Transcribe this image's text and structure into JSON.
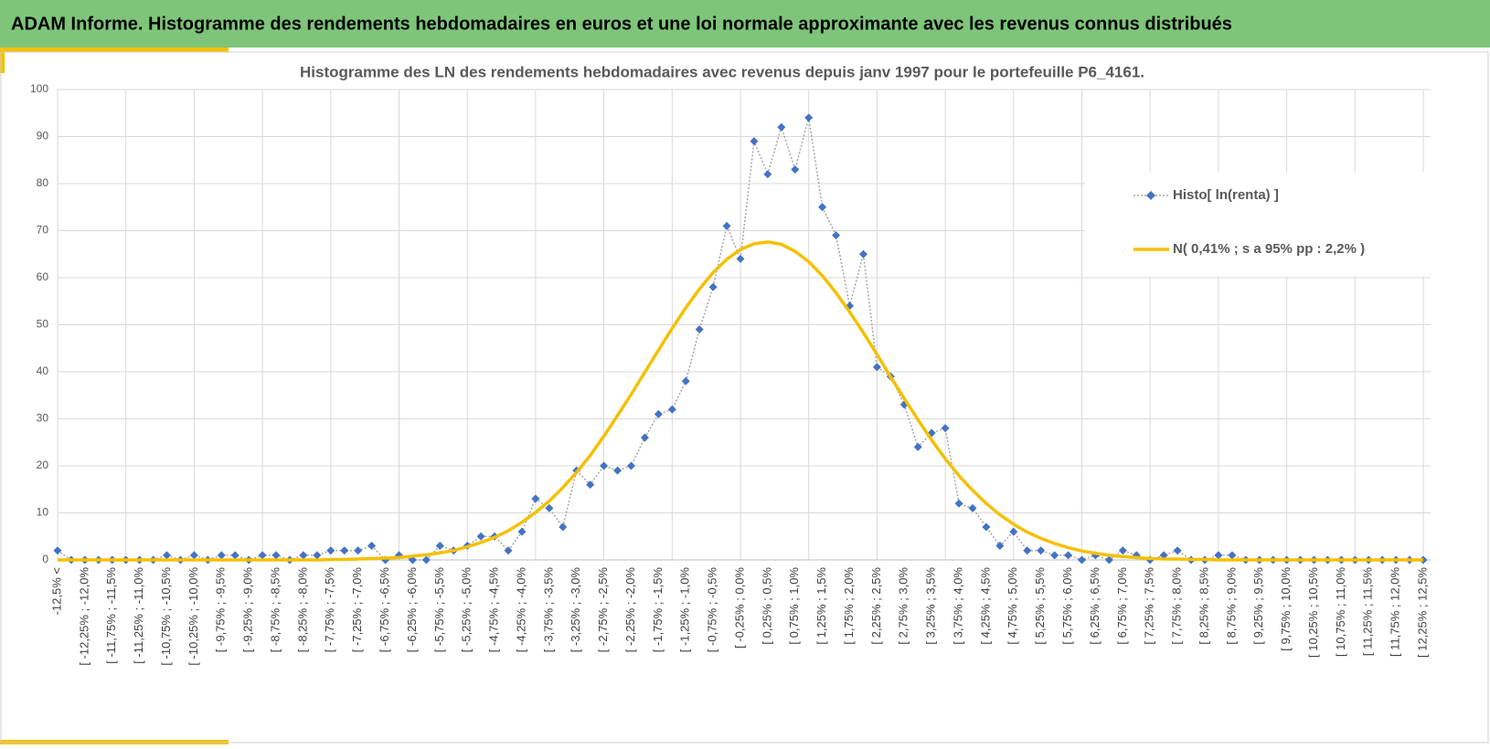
{
  "header": {
    "title": "ADAM Informe. Histogramme des rendements hebdomadaires en euros et une loi normale approximante avec les revenus connus distribués"
  },
  "chart_data": {
    "type": "line",
    "title": "Histogramme des LN des rendements hebdomadaires avec revenus depuis janv 1997 pour le portefeuille P6_4161.",
    "categories": [
      "-12,5% <",
      null,
      "[ -12,25% ; -12,0%",
      null,
      "[ -11,75% ; -11,5%",
      null,
      "[ -11,25% ; -11,0%",
      null,
      "[ -10,75% ; -10,5%",
      null,
      "[ -10,25% ; -10,0%",
      null,
      "[ -9,75% ; -9,5%",
      null,
      "[ -9,25% ; -9,0%",
      null,
      "[ -8,75% ; -8,5%",
      null,
      "[ -8,25% ; -8,0%",
      null,
      "[ -7,75% ; -7,5%",
      null,
      "[ -7,25% ; -7,0%",
      null,
      "[ -6,75% ; -6,5%",
      null,
      "[ -6,25% ; -6,0%",
      null,
      "[ -5,75% ; -5,5%",
      null,
      "[ -5,25% ; -5,0%",
      null,
      "[ -4,75% ; -4,5%",
      null,
      "[ -4,25% ; -4,0%",
      null,
      "[ -3,75% ; -3,5%",
      null,
      "[ -3,25% ; -3,0%",
      null,
      "[ -2,75% ; -2,5%",
      null,
      "[ -2,25% ; -2,0%",
      null,
      "[ -1,75% ; -1,5%",
      null,
      "[ -1,25% ; -1,0%",
      null,
      "[ -0,75% ; -0,5%",
      null,
      "[ -0,25% ; 0,0%",
      null,
      "[ 0,25% ; 0,5%",
      null,
      "[ 0,75% ; 1,0%",
      null,
      "[ 1,25% ; 1,5%",
      null,
      "[ 1,75% ; 2,0%",
      null,
      "[ 2,25% ; 2,5%",
      null,
      "[ 2,75% ; 3,0%",
      null,
      "[ 3,25% ; 3,5%",
      null,
      "[ 3,75% ; 4,0%",
      null,
      "[ 4,25% ; 4,5%",
      null,
      "[ 4,75% ; 5,0%",
      null,
      "[ 5,25% ; 5,5%",
      null,
      "[ 5,75% ; 6,0%",
      null,
      "[ 6,25% ; 6,5%",
      null,
      "[ 6,75% ; 7,0%",
      null,
      "[ 7,25% ; 7,5%",
      null,
      "[ 7,75% ; 8,0%",
      null,
      "[ 8,25% ; 8,5%",
      null,
      "[ 8,75% ; 9,0%",
      null,
      "[ 9,25% ; 9,5%",
      null,
      "[ 9,75% ; 10,0%",
      null,
      "[ 10,25% ; 10,5%",
      null,
      "[ 10,75% ; 11,0%",
      null,
      "[ 11,25% ; 11,5%",
      null,
      "[ 11,75% ; 12,0%",
      null,
      "[ 12,25% ; 12,5%"
    ],
    "series": [
      {
        "name": "Histo[ ln(renta) ]",
        "color": "#4472c4",
        "line_color": "#a6a6a6",
        "marker": "diamond",
        "dashed": true,
        "values": [
          2,
          0,
          0,
          0,
          0,
          0,
          0,
          0,
          1,
          0,
          1,
          0,
          1,
          1,
          0,
          1,
          1,
          0,
          1,
          1,
          2,
          2,
          2,
          3,
          0,
          1,
          0,
          0,
          3,
          2,
          3,
          5,
          5,
          2,
          6,
          13,
          11,
          7,
          19,
          16,
          20,
          19,
          20,
          26,
          31,
          32,
          38,
          49,
          58,
          71,
          64,
          89,
          82,
          92,
          83,
          94,
          75,
          69,
          54,
          65,
          41,
          39,
          33,
          24,
          27,
          28,
          12,
          11,
          7,
          3,
          6,
          2,
          2,
          1,
          1,
          0,
          1,
          0,
          2,
          1,
          0,
          1,
          2,
          0,
          0,
          1,
          1,
          0,
          0,
          0,
          0,
          0,
          0,
          0,
          0,
          0,
          0,
          0,
          0,
          0,
          0
        ]
      },
      {
        "name": "N( 0,41% ; s a 95% pp : 2,2% )",
        "color": "#f5c000",
        "marker": "none",
        "dashed": false,
        "values": [
          0,
          0,
          0,
          0,
          0,
          0,
          0,
          0,
          0,
          0,
          0,
          0,
          0,
          0,
          0,
          0,
          0,
          0,
          0,
          0,
          0.1,
          0.1,
          0.2,
          0.3,
          0.4,
          0.5,
          0.8,
          1.1,
          1.5,
          2.0,
          2.8,
          3.7,
          4.8,
          6.2,
          8.0,
          10.1,
          12.5,
          15.4,
          18.6,
          22.2,
          26.3,
          30.7,
          35.2,
          39.9,
          44.6,
          49.2,
          53.6,
          57.6,
          61.1,
          63.9,
          66.0,
          67.2,
          67.6,
          67.1,
          65.6,
          63.4,
          60.4,
          56.8,
          52.7,
          48.3,
          43.7,
          38.9,
          34.3,
          29.8,
          25.5,
          21.5,
          17.9,
          14.8,
          12.0,
          9.6,
          7.6,
          5.9,
          4.6,
          3.5,
          2.6,
          1.9,
          1.4,
          1.0,
          0.7,
          0.5,
          0.3,
          0.2,
          0.2,
          0.1,
          0.1,
          0,
          0,
          0,
          0,
          0,
          0,
          0,
          0,
          0,
          0,
          0,
          0,
          0,
          0,
          0,
          0
        ]
      }
    ],
    "ylim": [
      0,
      100
    ],
    "yticks": [
      0,
      10,
      20,
      30,
      40,
      50,
      60,
      70,
      80,
      90,
      100
    ],
    "grid": true,
    "legend": "right"
  }
}
